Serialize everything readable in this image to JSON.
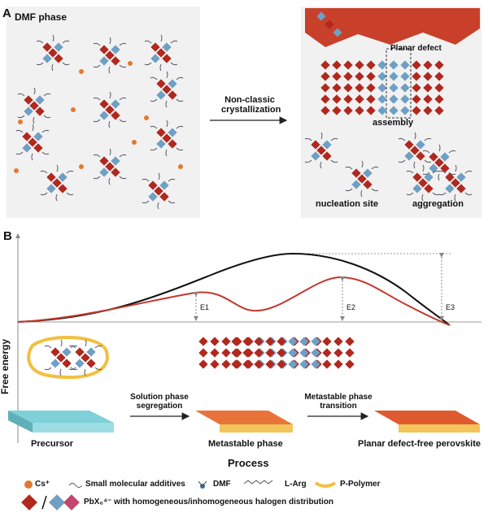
{
  "panel_a": {
    "label": "A",
    "left_box_title": "DMF phase",
    "arrow_label": [
      "Non-classic",
      "crystallization"
    ],
    "planar_defect": "Planar defect",
    "assembly": "assembly",
    "nucleation_site": "nucleation site",
    "aggregation": "aggregation"
  },
  "panel_b": {
    "label": "B",
    "y_axis_label": "Free energy",
    "x_axis_label": "Process",
    "barriers": [
      "E1",
      "E2",
      "E3"
    ],
    "stages": [
      "Precursor",
      "Metastable phase",
      "Planar defect-free perovskite"
    ],
    "step1": [
      "Solution phase",
      "segregation"
    ],
    "step2": [
      "Metastable phase",
      "transition"
    ]
  },
  "legend": {
    "cs": "Cs⁺",
    "small_molecule": "Small molecular additives",
    "dmf": "DMF",
    "larg": "L-Arg",
    "polymer": "P-Polymer",
    "pbx": "PbX₆⁴⁻ with homogeneous/inhomogeneous halogen distribution"
  },
  "colors": {
    "octahedron_red": "#b0281e",
    "octahedron_blue": "#6f9fc4",
    "octahedron_pink": "#c04870",
    "cs": "#e07a30",
    "polymer": "#f2c040",
    "curve_red": "#c0392b",
    "curve_black": "#111111"
  }
}
